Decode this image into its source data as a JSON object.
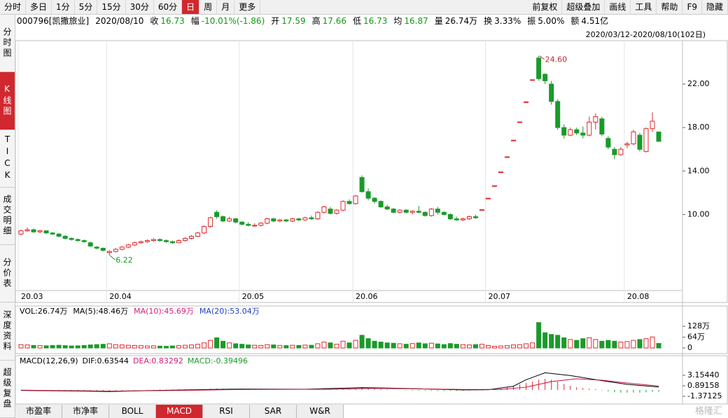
{
  "toolbar": {
    "left": [
      "分时",
      "多日",
      "1分",
      "5分",
      "15分",
      "30分",
      "60分",
      "日",
      "周",
      "月",
      "更多"
    ],
    "active": 7,
    "right": [
      "前复权",
      "超级叠加",
      "画线",
      "工具",
      "帮助",
      "F9",
      "隐藏"
    ]
  },
  "sidebar": {
    "items": [
      "分时图",
      "K线图",
      "TICK",
      "成交明细",
      "分价表",
      "深度资料",
      "超级复盘"
    ],
    "active": 1
  },
  "info": {
    "code": "000796[凯撒旅业]",
    "date": "2020/08/10",
    "items": [
      {
        "label": "收",
        "value": "16.73",
        "color": "#119911"
      },
      {
        "label": "幅",
        "value": "-10.01%(-1.86)",
        "color": "#119911"
      },
      {
        "label": "开",
        "value": "17.59",
        "color": "#119911"
      },
      {
        "label": "高",
        "value": "17.66",
        "color": "#119911"
      },
      {
        "label": "低",
        "value": "16.73",
        "color": "#119911"
      },
      {
        "label": "均",
        "value": "16.87",
        "color": "#119911"
      },
      {
        "label": "量",
        "value": "26.74万",
        "color": "#000000"
      },
      {
        "label": "换",
        "value": "3.33%",
        "color": "#000000"
      },
      {
        "label": "振",
        "value": "5.00%",
        "color": "#000000"
      },
      {
        "label": "额",
        "value": "4.51亿",
        "color": "#000000"
      }
    ]
  },
  "tabs": {
    "items": [
      "市盈率",
      "市净率",
      "BOLL",
      "MACD",
      "RSI",
      "SAR",
      "W&R"
    ],
    "active": 3
  },
  "watermark": "格隆汇",
  "chart_data": {
    "type": "candlestick",
    "range_label": "2020/03/12-2020/08/10(102日)",
    "up_color": "#e0282e",
    "down_color": "#1a9a2a",
    "ohlc": [
      [
        8.2,
        8.6,
        8.1,
        8.5
      ],
      [
        8.5,
        8.8,
        8.4,
        8.6
      ],
      [
        8.6,
        8.7,
        8.3,
        8.4
      ],
      [
        8.4,
        8.6,
        8.3,
        8.5
      ],
      [
        8.5,
        8.5,
        8.2,
        8.3
      ],
      [
        8.3,
        8.4,
        8.1,
        8.2
      ],
      [
        8.2,
        8.3,
        7.9,
        8.0
      ],
      [
        8.0,
        8.1,
        7.7,
        7.8
      ],
      [
        7.8,
        7.9,
        7.6,
        7.7
      ],
      [
        7.7,
        7.8,
        7.5,
        7.6
      ],
      [
        7.6,
        7.7,
        7.4,
        7.5
      ],
      [
        7.4,
        7.5,
        7.0,
        7.1
      ],
      [
        7.0,
        7.1,
        6.8,
        6.9
      ],
      [
        6.9,
        6.95,
        6.6,
        6.7
      ],
      [
        6.5,
        6.7,
        6.22,
        6.6
      ],
      [
        6.6,
        6.9,
        6.5,
        6.8
      ],
      [
        6.8,
        7.1,
        6.7,
        7.0
      ],
      [
        7.0,
        7.3,
        6.9,
        7.2
      ],
      [
        7.2,
        7.5,
        7.1,
        7.4
      ],
      [
        7.4,
        7.6,
        7.3,
        7.5
      ],
      [
        7.5,
        7.7,
        7.4,
        7.6
      ],
      [
        7.6,
        7.8,
        7.5,
        7.7
      ],
      [
        7.7,
        7.8,
        7.5,
        7.6
      ],
      [
        7.6,
        7.7,
        7.4,
        7.5
      ],
      [
        7.5,
        7.6,
        7.3,
        7.4
      ],
      [
        7.4,
        7.7,
        7.4,
        7.6
      ],
      [
        7.6,
        7.9,
        7.5,
        7.8
      ],
      [
        7.8,
        8.1,
        7.7,
        8.0
      ],
      [
        8.0,
        8.4,
        7.9,
        8.3
      ],
      [
        8.3,
        9.0,
        8.2,
        8.9
      ],
      [
        8.9,
        9.8,
        8.8,
        9.7
      ],
      [
        10.2,
        10.4,
        9.6,
        9.8
      ],
      [
        9.8,
        9.9,
        9.3,
        9.4
      ],
      [
        9.4,
        9.8,
        9.3,
        9.6
      ],
      [
        9.6,
        9.7,
        9.2,
        9.3
      ],
      [
        9.3,
        9.4,
        9.0,
        9.1
      ],
      [
        9.1,
        9.3,
        8.9,
        9.0
      ],
      [
        9.0,
        9.2,
        8.9,
        9.0
      ],
      [
        9.0,
        9.3,
        8.9,
        9.2
      ],
      [
        9.2,
        9.7,
        9.1,
        9.6
      ],
      [
        9.6,
        9.7,
        9.3,
        9.4
      ],
      [
        9.4,
        9.6,
        9.3,
        9.5
      ],
      [
        9.5,
        9.6,
        9.3,
        9.4
      ],
      [
        9.4,
        9.7,
        9.3,
        9.6
      ],
      [
        9.6,
        9.7,
        9.4,
        9.5
      ],
      [
        9.5,
        9.8,
        9.4,
        9.7
      ],
      [
        9.7,
        9.9,
        9.5,
        9.6
      ],
      [
        9.6,
        10.3,
        9.5,
        10.2
      ],
      [
        10.2,
        10.8,
        10.1,
        10.7
      ],
      [
        10.5,
        10.7,
        10.0,
        10.1
      ],
      [
        10.1,
        10.5,
        10.0,
        10.4
      ],
      [
        10.4,
        11.3,
        10.3,
        11.2
      ],
      [
        11.2,
        11.4,
        10.9,
        11.0
      ],
      [
        11.0,
        11.8,
        10.9,
        11.7
      ],
      [
        13.4,
        13.6,
        12.0,
        12.1
      ],
      [
        12.1,
        12.4,
        11.3,
        11.5
      ],
      [
        11.5,
        11.6,
        11.0,
        11.2
      ],
      [
        11.2,
        11.3,
        10.6,
        10.7
      ],
      [
        10.7,
        10.9,
        10.4,
        10.5
      ],
      [
        10.5,
        10.6,
        10.1,
        10.2
      ],
      [
        10.2,
        10.5,
        10.1,
        10.4
      ],
      [
        10.4,
        10.5,
        10.1,
        10.2
      ],
      [
        10.2,
        10.4,
        10.0,
        10.3
      ],
      [
        10.3,
        10.8,
        10.1,
        10.2
      ],
      [
        10.2,
        10.3,
        9.8,
        9.9
      ],
      [
        9.9,
        10.6,
        9.8,
        10.5
      ],
      [
        10.5,
        10.7,
        10.0,
        10.2
      ],
      [
        10.2,
        10.3,
        9.9,
        10.0
      ],
      [
        10.0,
        10.1,
        9.5,
        9.6
      ],
      [
        9.6,
        9.8,
        9.4,
        9.5
      ],
      [
        9.5,
        9.7,
        9.4,
        9.6
      ],
      [
        9.6,
        9.9,
        9.5,
        9.8
      ],
      [
        9.8,
        10.0,
        9.6,
        9.7
      ],
      [
        10.45,
        10.45,
        10.45,
        10.45
      ],
      [
        11.5,
        11.5,
        11.5,
        11.5
      ],
      [
        12.65,
        12.65,
        12.65,
        12.65
      ],
      [
        13.92,
        13.92,
        13.92,
        13.92
      ],
      [
        15.31,
        15.31,
        15.31,
        15.31
      ],
      [
        16.84,
        16.84,
        16.84,
        16.84
      ],
      [
        18.52,
        18.52,
        18.52,
        18.52
      ],
      [
        20.37,
        20.37,
        20.37,
        20.37
      ],
      [
        22.4,
        22.4,
        22.4,
        22.4
      ],
      [
        24.4,
        24.6,
        22.3,
        22.5
      ],
      [
        22.9,
        23.0,
        22.0,
        22.3
      ],
      [
        22.0,
        22.3,
        20.1,
        20.4
      ],
      [
        20.4,
        20.6,
        17.8,
        18.0
      ],
      [
        18.0,
        18.3,
        17.0,
        17.3
      ],
      [
        17.3,
        18.0,
        17.2,
        17.8
      ],
      [
        17.8,
        18.0,
        17.3,
        17.5
      ],
      [
        17.5,
        18.1,
        17.0,
        17.3
      ],
      [
        17.3,
        19.0,
        17.2,
        18.5
      ],
      [
        18.5,
        19.3,
        17.8,
        19.0
      ],
      [
        18.8,
        19.0,
        17.2,
        17.4
      ],
      [
        17.0,
        17.2,
        16.0,
        16.2
      ],
      [
        16.0,
        16.2,
        15.1,
        15.5
      ],
      [
        15.5,
        16.2,
        15.4,
        16.0
      ],
      [
        16.4,
        16.7,
        16.1,
        16.5
      ],
      [
        16.5,
        17.8,
        16.4,
        17.6
      ],
      [
        17.3,
        17.5,
        15.8,
        16.0
      ],
      [
        15.8,
        18.0,
        15.7,
        17.9
      ],
      [
        17.9,
        19.4,
        17.6,
        18.59
      ],
      [
        17.59,
        17.66,
        16.73,
        16.73
      ]
    ],
    "ylim": [
      3,
      26
    ],
    "yticks": [
      {
        "value": 10,
        "label": "10.00"
      },
      {
        "value": 14,
        "label": "14.00"
      },
      {
        "value": 18,
        "label": "18.00"
      },
      {
        "value": 22,
        "label": "22.00"
      }
    ],
    "date_ticks": [
      {
        "value": 0,
        "label": "20.03"
      },
      {
        "value": 14,
        "label": "20.04"
      },
      {
        "value": 35,
        "label": "20.05"
      },
      {
        "value": 53,
        "label": "20.06"
      },
      {
        "value": 74,
        "label": "20.07"
      },
      {
        "value": 96,
        "label": "20.08"
      }
    ],
    "annotations": [
      {
        "index": 82,
        "value": 24.6,
        "label": "24.60",
        "color": "#c0282e"
      },
      {
        "index": 14,
        "value": 6.22,
        "label": "6.22",
        "color": "#1a9a2a"
      }
    ],
    "volume": {
      "legend": [
        {
          "text": "VOL:26.74万",
          "color": "#000000"
        },
        {
          "text": "MA(5):48.46万",
          "color": "#000000"
        },
        {
          "text": "MA(10):45.69万",
          "color": "#d0207a"
        },
        {
          "text": "MA(20):53.04万",
          "color": "#2040c0"
        }
      ],
      "values": [
        20,
        18,
        15,
        14,
        13,
        15,
        16,
        14,
        12,
        13,
        15,
        18,
        20,
        22,
        25,
        20,
        18,
        16,
        15,
        14,
        12,
        13,
        11,
        10,
        12,
        14,
        16,
        18,
        22,
        30,
        45,
        60,
        40,
        30,
        25,
        22,
        18,
        16,
        15,
        20,
        18,
        15,
        14,
        16,
        15,
        17,
        16,
        25,
        35,
        30,
        22,
        40,
        30,
        45,
        75,
        55,
        40,
        35,
        30,
        28,
        25,
        22,
        26,
        30,
        25,
        28,
        24,
        20,
        26,
        22,
        20,
        18,
        20,
        22,
        15,
        10,
        12,
        14,
        18,
        20,
        25,
        30,
        150,
        90,
        80,
        75,
        60,
        50,
        45,
        55,
        60,
        50,
        40,
        45,
        40,
        35,
        38,
        45,
        50,
        55,
        65,
        26.74
      ],
      "ylim": [
        0,
        186
      ],
      "yticks": [
        0,
        {
          "value": 64,
          "label": "64万"
        },
        {
          "value": 128,
          "label": "128万"
        }
      ]
    },
    "macd": {
      "legend": [
        {
          "text": "MACD(12,26,9)",
          "color": "#000000"
        },
        {
          "text": "DIF:0.63544",
          "color": "#000000"
        },
        {
          "text": "DEA:0.83292",
          "color": "#d0207a"
        },
        {
          "text": "MACD:-0.39496",
          "color": "#1a9a2a"
        }
      ],
      "dif": {
        "color": "#000000",
        "x": [
          0,
          10,
          14,
          20,
          30,
          35,
          45,
          54,
          60,
          70,
          74,
          78,
          80,
          83,
          87,
          92,
          96,
          101
        ],
        "values": [
          -0.1,
          -0.25,
          -0.35,
          -0.15,
          0.1,
          0.2,
          0.15,
          0.5,
          0.35,
          0.0,
          0.05,
          0.8,
          2.2,
          3.7,
          3.1,
          2.0,
          1.2,
          0.63544
        ]
      },
      "dea": {
        "color": "#c0143c",
        "x": [
          0,
          14,
          25,
          35,
          50,
          56,
          70,
          76,
          80,
          84,
          88,
          92,
          96,
          101
        ],
        "values": [
          -0.05,
          -0.25,
          -0.1,
          0.1,
          0.15,
          0.35,
          0.1,
          0.1,
          0.6,
          1.8,
          2.4,
          2.1,
          1.5,
          0.83292
        ]
      },
      "hist": [
        -0.1,
        -0.1,
        -0.1,
        -0.12,
        -0.15,
        -0.15,
        -0.15,
        -0.18,
        -0.2,
        -0.2,
        -0.22,
        -0.22,
        -0.2,
        -0.2,
        -0.2,
        -0.18,
        -0.15,
        -0.1,
        -0.05,
        0,
        0.05,
        0.08,
        0.1,
        0.1,
        0.1,
        0.12,
        0.12,
        0.15,
        0.18,
        0.2,
        0.25,
        0.3,
        0.28,
        0.25,
        0.22,
        0.2,
        0.15,
        0.12,
        0.1,
        0.08,
        0.05,
        0.02,
        0,
        -0.02,
        -0.03,
        -0.02,
        0,
        0.02,
        0.05,
        0.08,
        0.1,
        0.15,
        0.2,
        0.3,
        0.5,
        0.45,
        0.35,
        0.25,
        0.15,
        0.05,
        -0.05,
        -0.1,
        -0.15,
        -0.18,
        -0.2,
        -0.2,
        -0.22,
        -0.22,
        -0.2,
        -0.2,
        -0.18,
        -0.15,
        -0.12,
        -0.1,
        -0.05,
        0.1,
        0.3,
        0.6,
        0.9,
        1.2,
        1.5,
        1.8,
        2.2,
        2.4,
        2.2,
        1.8,
        1.3,
        0.9,
        0.6,
        0.4,
        0.3,
        0.2,
        -0.1,
        -0.3,
        -0.5,
        -0.6,
        -0.6,
        -0.55,
        -0.6,
        -0.5,
        -0.4,
        -0.39496
      ],
      "ylim": [
        -2.73,
        5.27
      ],
      "yticks": [
        {
          "value": 3.1544,
          "label": "3.15440"
        },
        {
          "value": 0.89158,
          "label": "0.89158"
        },
        {
          "value": -1.37125,
          "label": "-1.37125"
        }
      ]
    }
  }
}
